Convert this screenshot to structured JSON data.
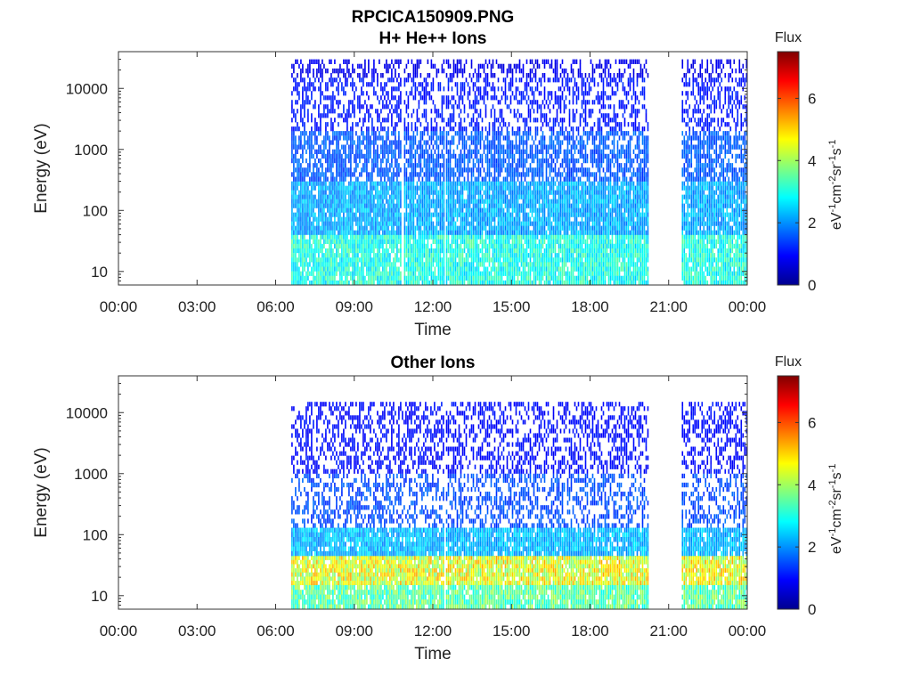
{
  "figure": {
    "title_line1": "RPCICA150909.PNG"
  },
  "chart_data": [
    {
      "type": "heatmap",
      "title": "H+ He++ Ions",
      "xlabel": "Time",
      "ylabel": "Energy (eV)",
      "x_ticks": [
        "00:00",
        "03:00",
        "06:00",
        "09:00",
        "12:00",
        "15:00",
        "18:00",
        "21:00",
        "00:00"
      ],
      "x_range_hours": [
        0,
        24
      ],
      "y_ticks": [
        "10",
        "100",
        "1000",
        "10000"
      ],
      "y_scale": "log",
      "y_range": [
        6,
        40000
      ],
      "colorbar": {
        "label": "Flux",
        "unit": "eV-1cm-2sr-1s-1",
        "ticks": [
          "0",
          "2",
          "4",
          "6"
        ],
        "range": [
          0,
          7.5
        ]
      },
      "data_coverage_hours": [
        [
          6.6,
          10.8
        ],
        [
          10.9,
          12.4
        ],
        [
          12.5,
          20.2
        ],
        [
          21.5,
          24.0
        ]
      ],
      "levels": [
        {
          "energy_min": 6,
          "energy_max": 40,
          "flux": 3.0
        },
        {
          "energy_min": 40,
          "energy_max": 300,
          "flux": 2.2
        },
        {
          "energy_min": 300,
          "energy_max": 2000,
          "flux": 1.6
        },
        {
          "energy_min": 2000,
          "energy_max": 15000,
          "flux": 1.1
        },
        {
          "energy_min": 15000,
          "energy_max": 30000,
          "flux": 0.8
        }
      ]
    },
    {
      "type": "heatmap",
      "title": "Other Ions",
      "xlabel": "Time",
      "ylabel": "Energy (eV)",
      "x_ticks": [
        "00:00",
        "03:00",
        "06:00",
        "09:00",
        "12:00",
        "15:00",
        "18:00",
        "21:00",
        "00:00"
      ],
      "x_range_hours": [
        0,
        24
      ],
      "y_ticks": [
        "10",
        "100",
        "1000",
        "10000"
      ],
      "y_scale": "log",
      "y_range": [
        6,
        40000
      ],
      "colorbar": {
        "label": "Flux",
        "unit": "eV-1cm-2sr-1s-1",
        "ticks": [
          "0",
          "2",
          "4",
          "6"
        ],
        "range": [
          0,
          7.5
        ]
      },
      "data_coverage_hours": [
        [
          6.6,
          12.4
        ],
        [
          12.5,
          20.2
        ],
        [
          21.5,
          24.0
        ]
      ],
      "levels": [
        {
          "energy_min": 6,
          "energy_max": 15,
          "flux": 3.5
        },
        {
          "energy_min": 15,
          "energy_max": 45,
          "flux": 4.5
        },
        {
          "energy_min": 45,
          "energy_max": 130,
          "flux": 2.3
        },
        {
          "energy_min": 130,
          "energy_max": 1000,
          "flux": 1.5
        },
        {
          "energy_min": 1000,
          "energy_max": 15000,
          "flux": 1.0
        }
      ]
    }
  ]
}
